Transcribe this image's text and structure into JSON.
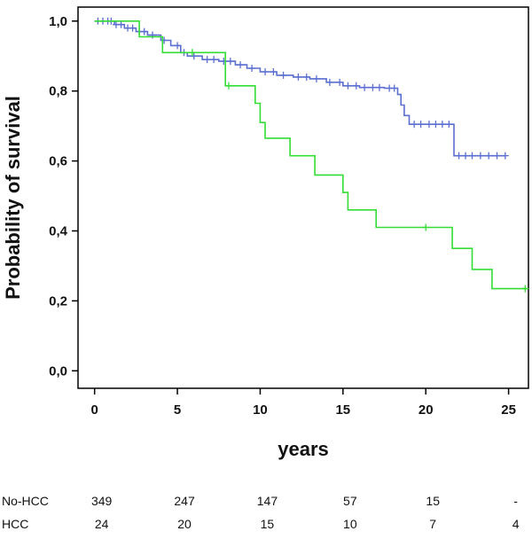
{
  "chart_data": {
    "type": "line",
    "title": "",
    "xlabel": "years",
    "ylabel": "Probability of survival",
    "xlim": [
      -1,
      26.2
    ],
    "ylim": [
      -0.05,
      1.04
    ],
    "x_ticks": [
      0,
      5,
      10,
      15,
      20,
      25
    ],
    "x_tick_labels": [
      "0",
      "5",
      "10",
      "15",
      "20",
      "25"
    ],
    "y_ticks": [
      0,
      0.2,
      0.4,
      0.6,
      0.8,
      1.0
    ],
    "y_tick_labels": [
      "0,0",
      "0,2",
      "0,4",
      "0,6",
      "0,8",
      "1,0"
    ],
    "grid": false,
    "series": [
      {
        "color": "#5a6fd0",
        "step_points": [
          [
            0,
            1.0
          ],
          [
            1.2,
            0.99
          ],
          [
            1.8,
            0.98
          ],
          [
            2.5,
            0.97
          ],
          [
            3.2,
            0.96
          ],
          [
            4.0,
            0.945
          ],
          [
            4.6,
            0.93
          ],
          [
            5.2,
            0.91
          ],
          [
            5.6,
            0.9
          ],
          [
            6.5,
            0.89
          ],
          [
            7.5,
            0.885
          ],
          [
            8.5,
            0.875
          ],
          [
            9.2,
            0.865
          ],
          [
            10.0,
            0.855
          ],
          [
            11.0,
            0.845
          ],
          [
            12.0,
            0.84
          ],
          [
            13.0,
            0.835
          ],
          [
            14.0,
            0.825
          ],
          [
            15.0,
            0.815
          ],
          [
            16.0,
            0.81
          ],
          [
            17.5,
            0.808
          ],
          [
            18.3,
            0.79
          ],
          [
            18.5,
            0.76
          ],
          [
            18.7,
            0.73
          ],
          [
            19.0,
            0.705
          ],
          [
            21.7,
            0.615
          ],
          [
            24.8,
            0.615
          ]
        ],
        "censor_x": [
          0.2,
          0.5,
          0.8,
          1.0,
          1.3,
          1.6,
          2.0,
          2.3,
          2.7,
          3.0,
          3.5,
          4.2,
          5.0,
          5.4,
          6.0,
          6.8,
          7.2,
          7.8,
          8.2,
          8.8,
          9.5,
          10.3,
          10.8,
          11.4,
          12.3,
          12.8,
          13.4,
          14.2,
          14.8,
          15.3,
          15.8,
          16.3,
          16.8,
          17.2,
          17.8,
          18.1,
          19.3,
          19.7,
          20.2,
          20.6,
          21.0,
          21.4,
          22.0,
          22.4,
          22.8,
          23.3,
          23.8,
          24.3,
          24.8
        ]
      },
      {
        "color": "#33dd33",
        "step_points": [
          [
            0,
            1.0
          ],
          [
            2.7,
            0.955
          ],
          [
            4.1,
            0.91
          ],
          [
            7.9,
            0.815
          ],
          [
            9.7,
            0.765
          ],
          [
            10.0,
            0.71
          ],
          [
            10.3,
            0.665
          ],
          [
            11.8,
            0.615
          ],
          [
            13.3,
            0.56
          ],
          [
            15.0,
            0.51
          ],
          [
            15.3,
            0.46
          ],
          [
            17.0,
            0.41
          ],
          [
            21.6,
            0.35
          ],
          [
            22.8,
            0.29
          ],
          [
            24.0,
            0.235
          ],
          [
            26.1,
            0.235
          ]
        ],
        "censor_x": [
          5.9,
          8.1,
          20.0,
          26.0
        ]
      }
    ]
  },
  "risk_table": {
    "rows": [
      {
        "label": "No-HCC",
        "values": [
          "349",
          "247",
          "147",
          "57",
          "15",
          "-"
        ]
      },
      {
        "label": "HCC",
        "values": [
          "24",
          "20",
          "15",
          "10",
          "7",
          "4"
        ]
      }
    ]
  }
}
